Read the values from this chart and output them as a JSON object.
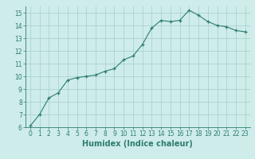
{
  "x": [
    0,
    1,
    2,
    3,
    4,
    5,
    6,
    7,
    8,
    9,
    10,
    11,
    12,
    13,
    14,
    15,
    16,
    17,
    18,
    19,
    20,
    21,
    22,
    23
  ],
  "y": [
    6.1,
    7.0,
    8.3,
    8.7,
    9.7,
    9.9,
    10.0,
    10.1,
    10.4,
    10.6,
    11.3,
    11.6,
    12.5,
    13.8,
    14.4,
    14.3,
    14.4,
    15.2,
    14.8,
    14.3,
    14.0,
    13.9,
    13.6,
    13.5
  ],
  "xlim": [
    -0.5,
    23.5
  ],
  "ylim": [
    6,
    15.5
  ],
  "yticks": [
    6,
    7,
    8,
    9,
    10,
    11,
    12,
    13,
    14,
    15
  ],
  "xticks": [
    0,
    1,
    2,
    3,
    4,
    5,
    6,
    7,
    8,
    9,
    10,
    11,
    12,
    13,
    14,
    15,
    16,
    17,
    18,
    19,
    20,
    21,
    22,
    23
  ],
  "xlabel": "Humidex (Indice chaleur)",
  "line_color": "#2e7d6e",
  "marker_color": "#2e7d6e",
  "bg_color": "#ceecea",
  "grid_color": "#aad4d0",
  "tick_label_fontsize": 5.5,
  "xlabel_fontsize": 7
}
